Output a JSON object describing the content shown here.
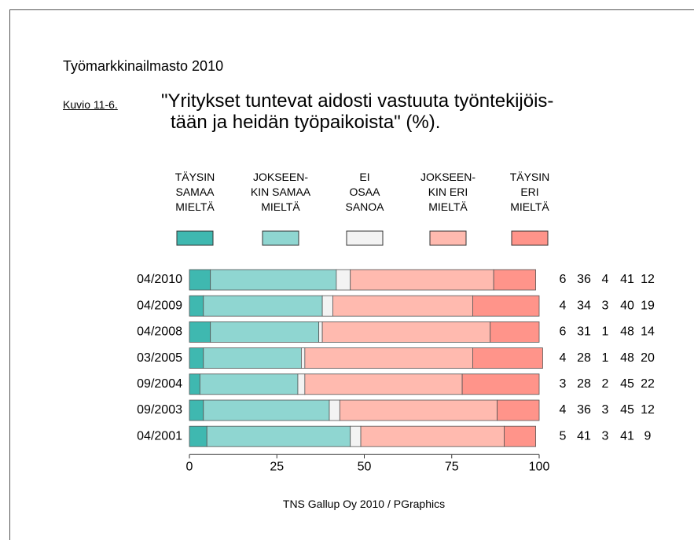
{
  "chart_data": {
    "type": "stacked_barh",
    "header": "Työmarkkinailmasto 2010",
    "figure_label": "Kuvio 11-6.",
    "title": "\"Yritykset tuntevat aidosti vastuuta työntekijöis-\ntään ja heidän työpaikoista\" (%).",
    "footer": "TNS Gallup Oy 2010 / PGraphics",
    "categories": [
      "04/2010",
      "04/2009",
      "04/2008",
      "03/2005",
      "09/2004",
      "09/2003",
      "04/2001"
    ],
    "series": [
      {
        "name": "TÄYSIN\nSAMAA\nMIELTÄ",
        "color": "#3fb8b0",
        "values": [
          6,
          4,
          6,
          4,
          3,
          4,
          5
        ]
      },
      {
        "name": "JOKSEEN-\nKIN SAMAA\nMIELTÄ",
        "color": "#8fd6d1",
        "values": [
          36,
          34,
          31,
          28,
          28,
          36,
          41
        ]
      },
      {
        "name": "EI\nOSAA\nSANOA",
        "color": "#f3f3f3",
        "values": [
          4,
          3,
          1,
          1,
          2,
          3,
          3
        ]
      },
      {
        "name": "JOKSEEN-\nKIN ERI\nMIELTÄ",
        "color": "#ffbaaf",
        "values": [
          41,
          40,
          48,
          48,
          45,
          45,
          41
        ]
      },
      {
        "name": "TÄYSIN\nERI\nMIELTÄ",
        "color": "#ff948a",
        "values": [
          12,
          19,
          14,
          20,
          22,
          12,
          9
        ]
      }
    ],
    "xlim": [
      0,
      100
    ],
    "xticks": [
      0,
      25,
      50,
      75,
      100
    ]
  }
}
